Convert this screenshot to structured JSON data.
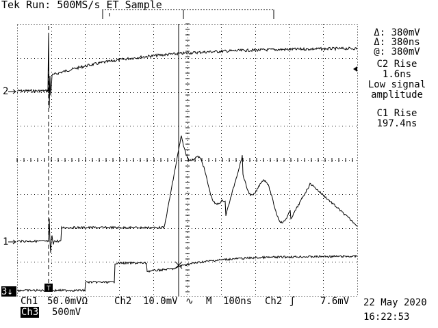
{
  "header": {
    "title": "Tek Run: 500MS/s ET Sample"
  },
  "readouts": {
    "delta_v": "Δ: 380mV",
    "delta_t": "Δ: 380ns",
    "at_v": "@: 380mV",
    "meas1_title": "C2 Rise",
    "meas1_value": "1.6ns",
    "meas1_warn1": "Low signal",
    "meas1_warn2": "amplitude",
    "meas2_title": "C1 Rise",
    "meas2_value": "197.4ns"
  },
  "channel_markers": {
    "ch2": "2",
    "ch1": "1",
    "ch3": "3"
  },
  "status": {
    "ch1_label": "Ch1",
    "ch1_scale": "50.0mVΩ",
    "ch2_label": "Ch2",
    "ch2_scale": "10.0mV",
    "ch2_coupling": "∿",
    "timebase_label": "M",
    "timebase": "100ns",
    "trigger_source": "Ch2",
    "trigger_slope": "ʃ",
    "trigger_level": "7.6mV",
    "ch3_label": "Ch3",
    "ch3_scale": "500mV",
    "date": "22 May 2020",
    "time": "16:22:53"
  },
  "colors": {
    "background": "#ffffff",
    "trace": "#000000",
    "graticule": "#000000"
  }
}
